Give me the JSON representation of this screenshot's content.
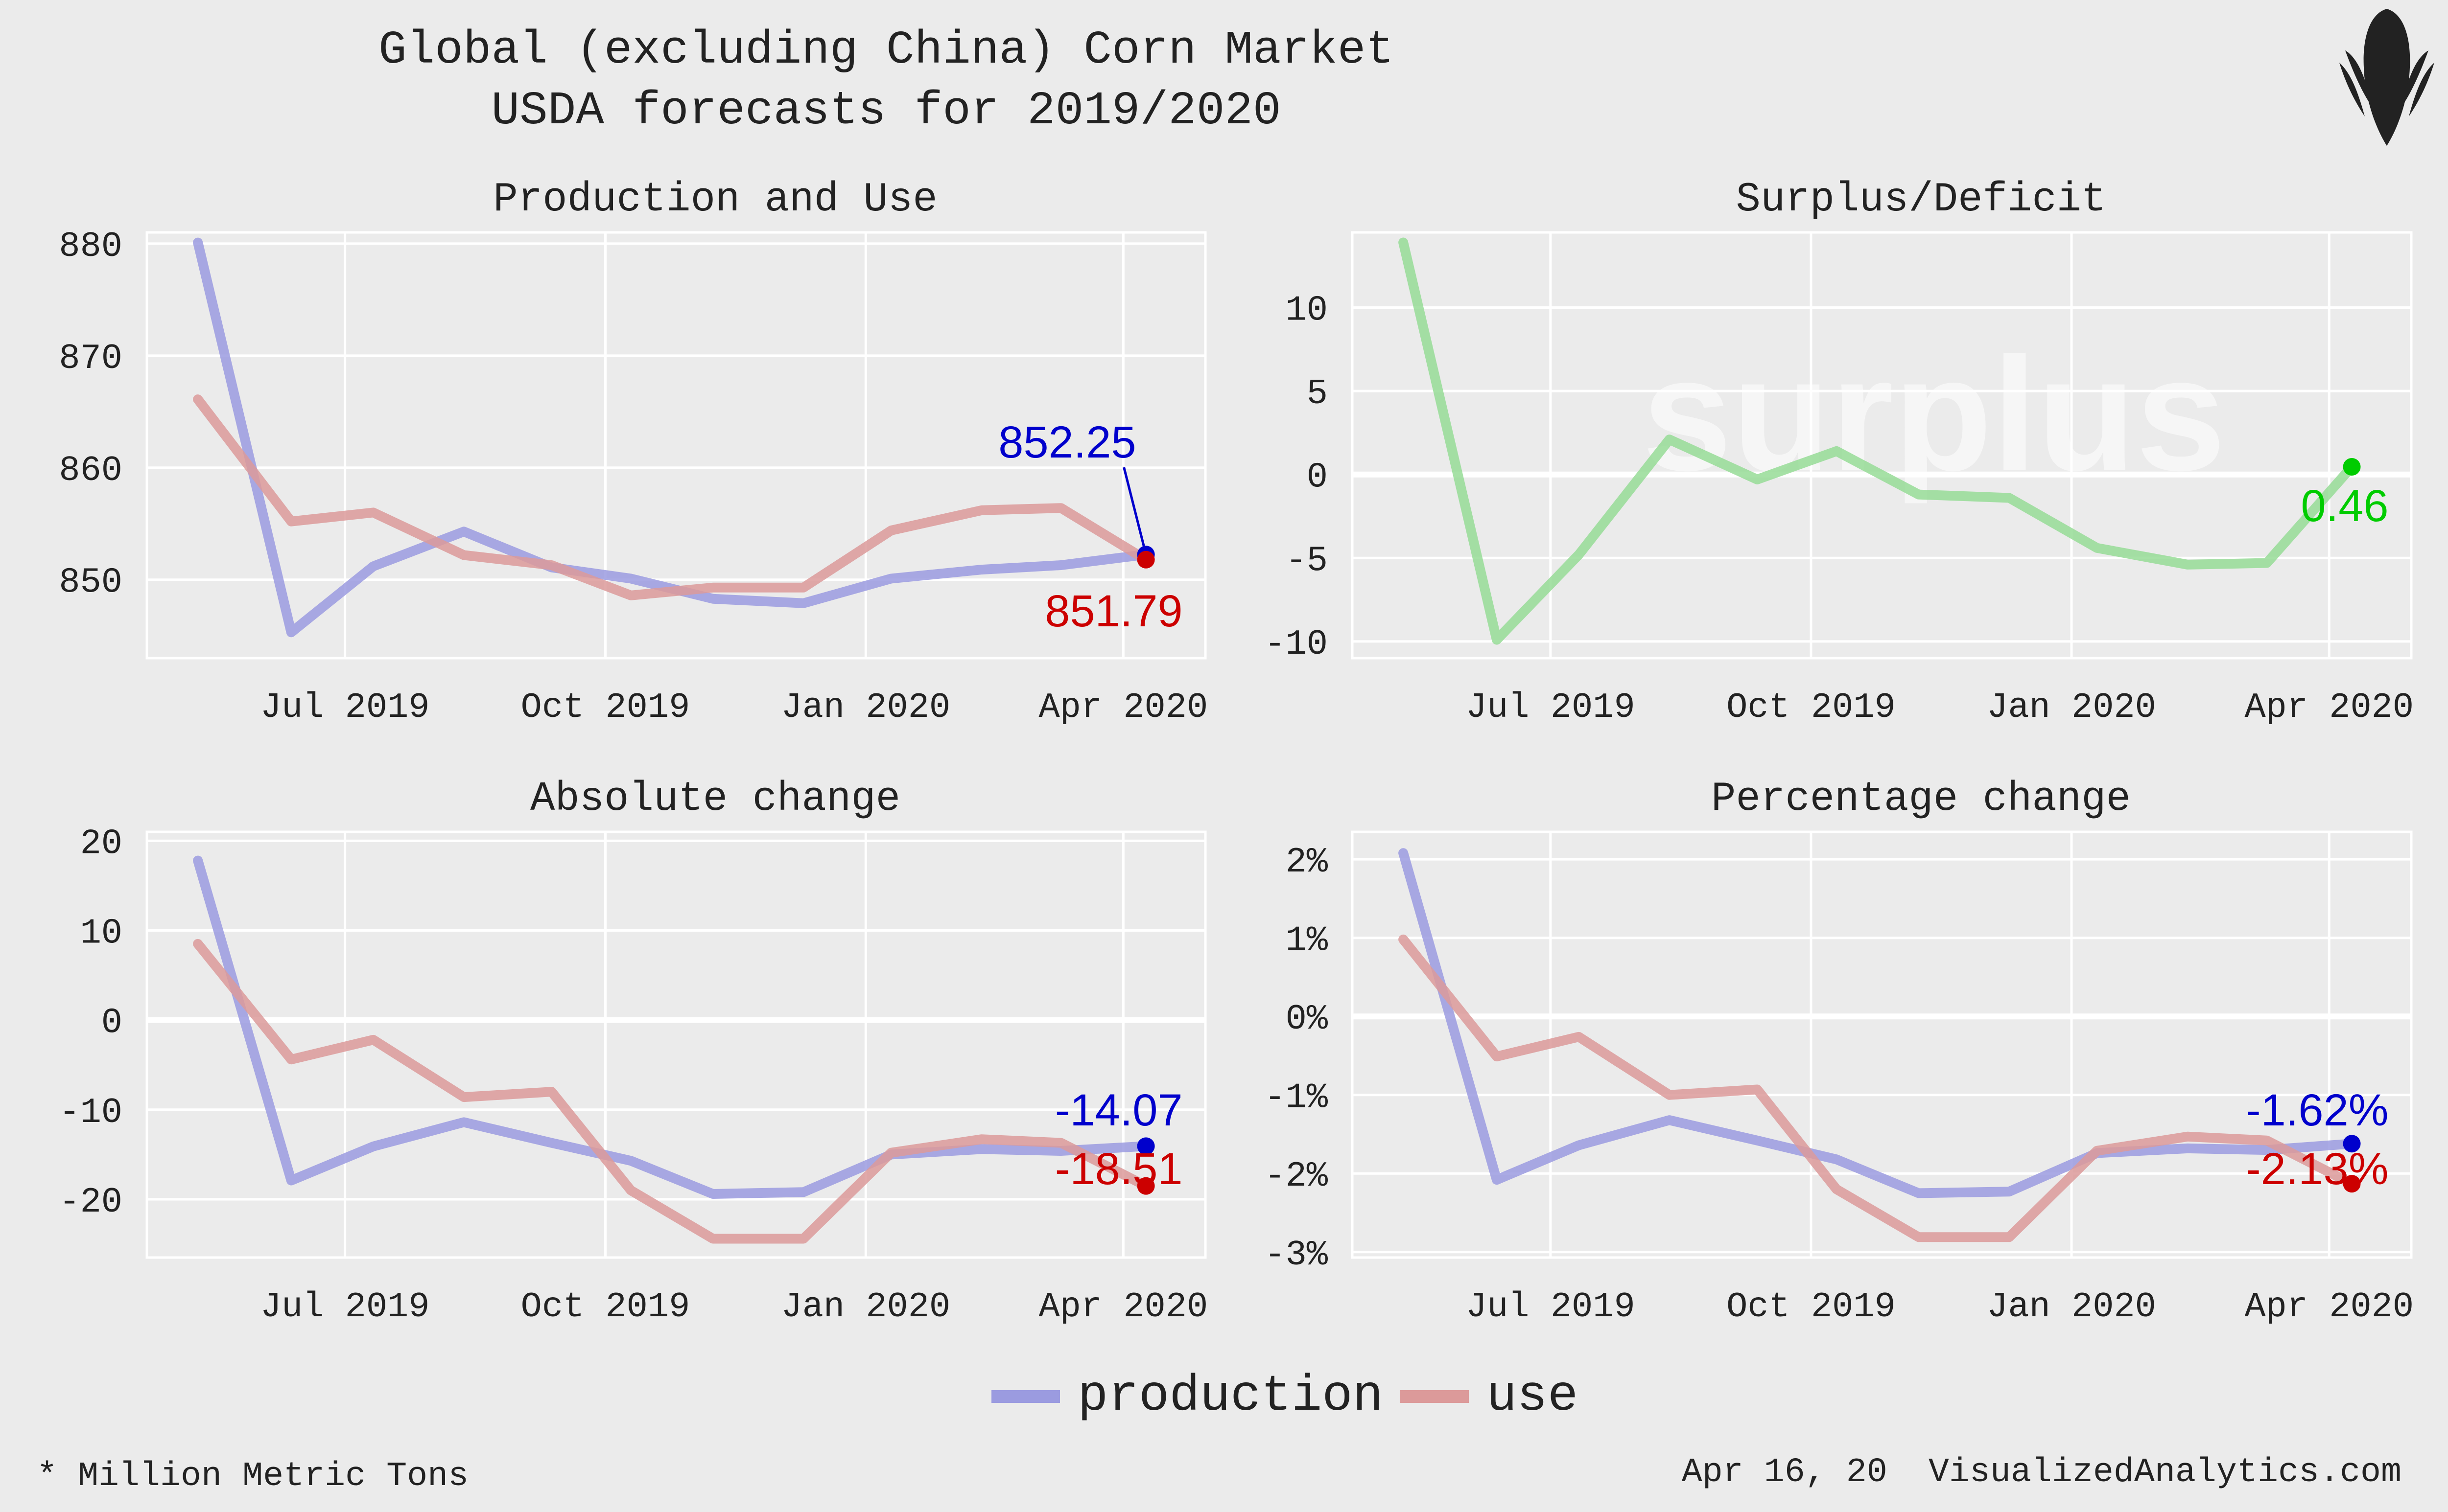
{
  "title": "Global (excluding China) Corn Market",
  "subtitle": "USDA forecasts for 2019/2020",
  "colors": {
    "production": "#9b9be0",
    "use": "#dc9a9a",
    "surplus": "#96dc96",
    "production_accent": "#0000cc",
    "use_accent": "#cc0000",
    "surplus_accent": "#00cc00"
  },
  "legend": [
    {
      "key": "production",
      "label": "production"
    },
    {
      "key": "use",
      "label": "use"
    }
  ],
  "footnote": "* Million Metric Tons",
  "date": "Apr 16, 20",
  "site": "VisualizedAnalytics.com",
  "logo_icon": "corn-cob-icon",
  "chart_data": [
    {
      "id": "production-and-use",
      "type": "line",
      "title": "Production and Use",
      "x": [
        "2019-05-10",
        "2019-06-12",
        "2019-07-11",
        "2019-08-12",
        "2019-09-12",
        "2019-10-10",
        "2019-11-08",
        "2019-12-10",
        "2020-01-10",
        "2020-02-11",
        "2020-03-10",
        "2020-04-09"
      ],
      "x_ticks": [
        {
          "date": "2019-07-01",
          "label": "Jul 2019"
        },
        {
          "date": "2019-10-01",
          "label": "Oct 2019"
        },
        {
          "date": "2020-01-01",
          "label": "Jan 2020"
        },
        {
          "date": "2020-04-01",
          "label": "Apr 2020"
        }
      ],
      "xlim": [
        "2019-04-22",
        "2020-04-30"
      ],
      "ylim": [
        843,
        881
      ],
      "y_ticks": [
        850,
        860,
        870,
        880
      ],
      "y_tick_labels": [
        "850",
        "860",
        "870",
        "880"
      ],
      "series": [
        {
          "name": "production",
          "values": [
            880.1,
            845.3,
            851.2,
            854.3,
            851.1,
            850.1,
            848.3,
            847.9,
            850.1,
            850.9,
            851.3,
            852.25
          ]
        },
        {
          "name": "use",
          "values": [
            866.1,
            855.2,
            856.0,
            852.2,
            851.3,
            848.6,
            849.3,
            849.3,
            854.4,
            856.2,
            856.4,
            851.79
          ]
        }
      ],
      "end_labels": [
        {
          "series": "production",
          "text": "852.25"
        },
        {
          "series": "use",
          "text": "851.79"
        }
      ]
    },
    {
      "id": "surplus-deficit",
      "type": "line",
      "title": "Surplus/Deficit",
      "watermark": "surplus",
      "x": [
        "2019-05-10",
        "2019-06-12",
        "2019-07-11",
        "2019-08-12",
        "2019-09-12",
        "2019-10-10",
        "2019-11-08",
        "2019-12-10",
        "2020-01-10",
        "2020-02-11",
        "2020-03-10",
        "2020-04-09"
      ],
      "x_ticks": [
        {
          "date": "2019-07-01",
          "label": "Jul 2019"
        },
        {
          "date": "2019-10-01",
          "label": "Oct 2019"
        },
        {
          "date": "2020-01-01",
          "label": "Jan 2020"
        },
        {
          "date": "2020-04-01",
          "label": "Apr 2020"
        }
      ],
      "xlim": [
        "2019-04-22",
        "2020-04-30"
      ],
      "ylim": [
        -11,
        14.5
      ],
      "y_ticks": [
        -10,
        -5,
        0,
        5,
        10
      ],
      "y_tick_labels": [
        "-10",
        "-5",
        "0",
        "5",
        "10"
      ],
      "series": [
        {
          "name": "surplus",
          "values": [
            13.9,
            -9.9,
            -4.8,
            2.1,
            -0.3,
            1.4,
            -1.2,
            -1.4,
            -4.4,
            -5.4,
            -5.3,
            0.46
          ]
        }
      ],
      "end_labels": [
        {
          "series": "surplus",
          "text": "0.46"
        }
      ]
    },
    {
      "id": "absolute-change",
      "type": "line",
      "title": "Absolute change",
      "x": [
        "2019-05-10",
        "2019-06-12",
        "2019-07-11",
        "2019-08-12",
        "2019-09-12",
        "2019-10-10",
        "2019-11-08",
        "2019-12-10",
        "2020-01-10",
        "2020-02-11",
        "2020-03-10",
        "2020-04-09"
      ],
      "x_ticks": [
        {
          "date": "2019-07-01",
          "label": "Jul 2019"
        },
        {
          "date": "2019-10-01",
          "label": "Oct 2019"
        },
        {
          "date": "2020-01-01",
          "label": "Jan 2020"
        },
        {
          "date": "2020-04-01",
          "label": "Apr 2020"
        }
      ],
      "xlim": [
        "2019-04-22",
        "2020-04-30"
      ],
      "ylim": [
        -26.5,
        21
      ],
      "y_ticks": [
        -20,
        -10,
        0,
        10,
        20
      ],
      "y_tick_labels": [
        "-20",
        "-10",
        "0",
        "10",
        "20"
      ],
      "series": [
        {
          "name": "production",
          "values": [
            17.8,
            -17.9,
            -14.1,
            -11.4,
            -13.7,
            -15.7,
            -19.4,
            -19.2,
            -15.0,
            -14.4,
            -14.6,
            -14.07
          ]
        },
        {
          "name": "use",
          "values": [
            8.5,
            -4.4,
            -2.2,
            -8.6,
            -8.0,
            -19.0,
            -24.4,
            -24.4,
            -14.8,
            -13.3,
            -13.7,
            -18.51
          ]
        }
      ],
      "end_labels": [
        {
          "series": "production",
          "text": "-14.07"
        },
        {
          "series": "use",
          "text": "-18.51"
        }
      ]
    },
    {
      "id": "percentage-change",
      "type": "line",
      "title": "Percentage change",
      "x": [
        "2019-05-10",
        "2019-06-12",
        "2019-07-11",
        "2019-08-12",
        "2019-09-12",
        "2019-10-10",
        "2019-11-08",
        "2019-12-10",
        "2020-01-10",
        "2020-02-11",
        "2020-03-10",
        "2020-04-09"
      ],
      "x_ticks": [
        {
          "date": "2019-07-01",
          "label": "Jul 2019"
        },
        {
          "date": "2019-10-01",
          "label": "Oct 2019"
        },
        {
          "date": "2020-01-01",
          "label": "Jan 2020"
        },
        {
          "date": "2020-04-01",
          "label": "Apr 2020"
        }
      ],
      "xlim": [
        "2019-04-22",
        "2020-04-30"
      ],
      "ylim": [
        -3.07,
        2.35
      ],
      "y_ticks": [
        -3,
        -2,
        -1,
        0,
        1,
        2
      ],
      "y_tick_labels": [
        "-3%",
        "-2%",
        "-1%",
        "0%",
        "1%",
        "2%"
      ],
      "series": [
        {
          "name": "production",
          "values": [
            2.08,
            -2.08,
            -1.64,
            -1.32,
            -1.58,
            -1.82,
            -2.25,
            -2.23,
            -1.74,
            -1.68,
            -1.7,
            -1.62
          ]
        },
        {
          "name": "use",
          "values": [
            0.98,
            -0.51,
            -0.26,
            -1.0,
            -0.93,
            -2.2,
            -2.81,
            -2.81,
            -1.71,
            -1.53,
            -1.58,
            -2.13
          ]
        }
      ],
      "end_labels": [
        {
          "series": "production",
          "text": "-1.62%"
        },
        {
          "series": "use",
          "text": "-2.13%"
        }
      ]
    }
  ]
}
